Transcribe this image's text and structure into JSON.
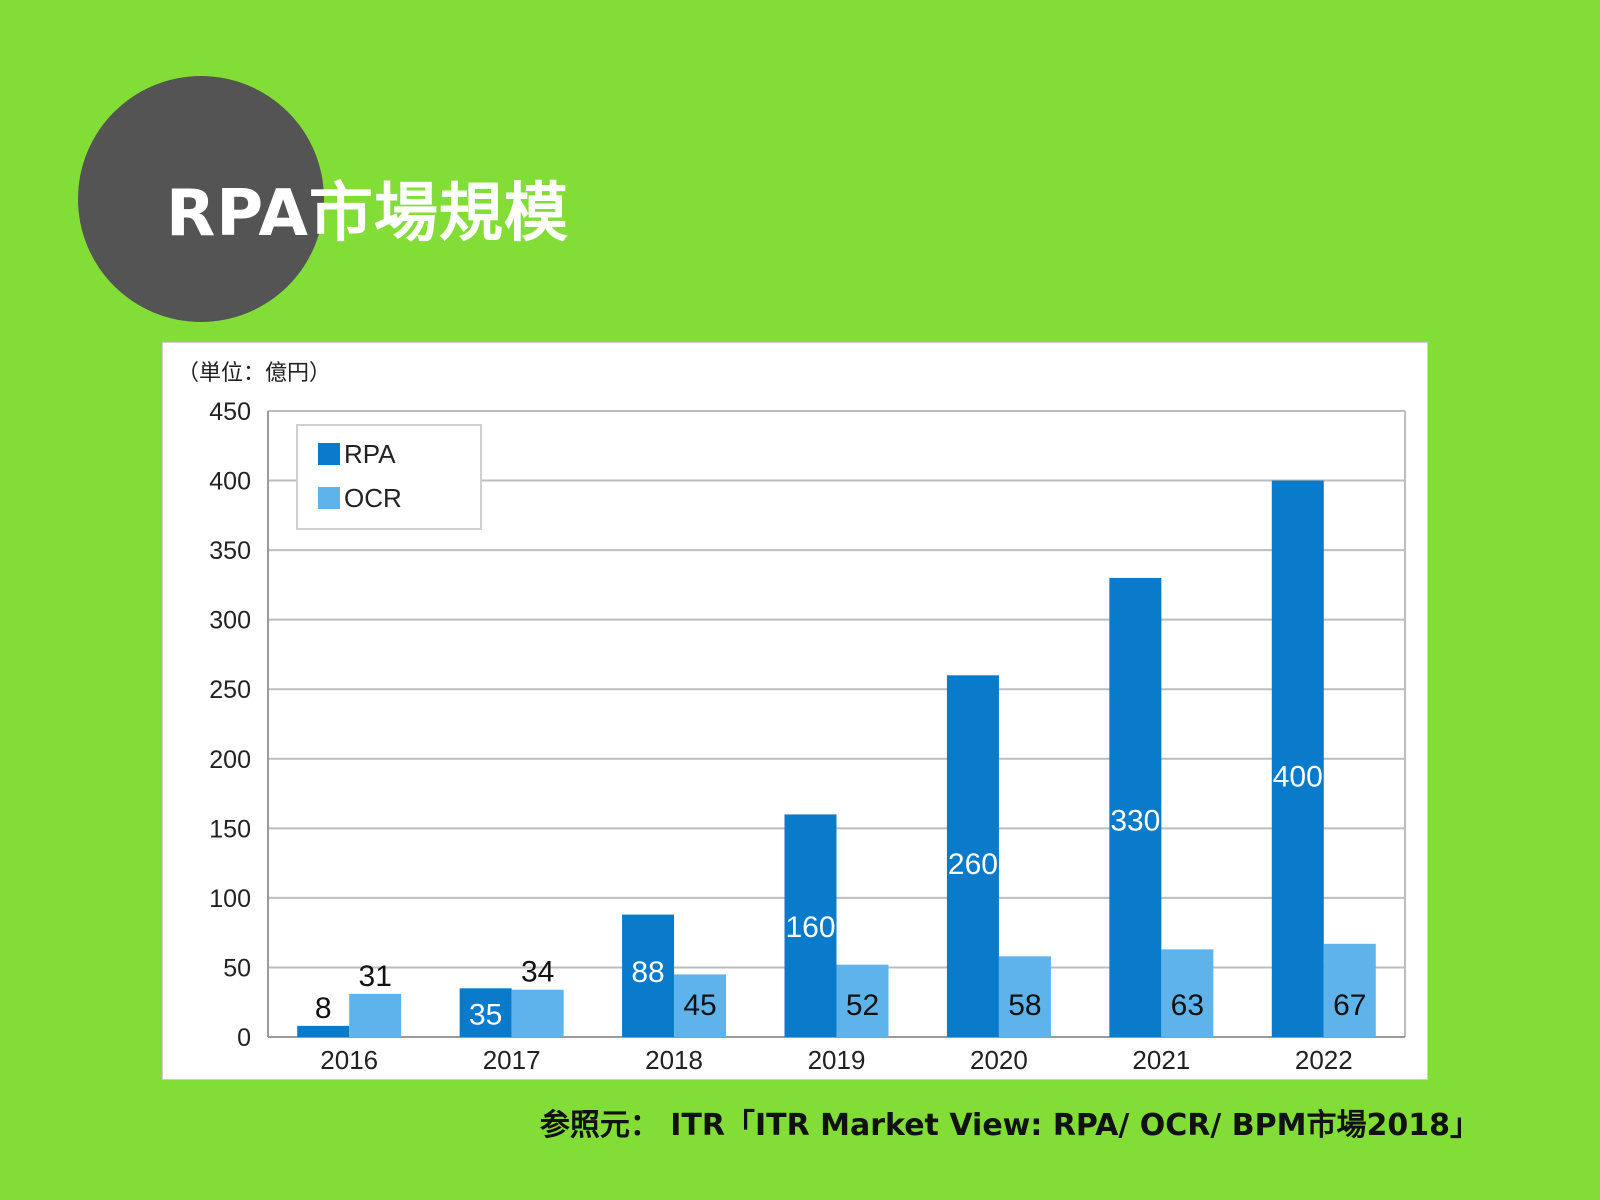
{
  "header": {
    "title": "RPA市場規模"
  },
  "source_note": "参照元： ITR「ITR Market View: RPA/ OCR/ BPM市場2018」",
  "colors": {
    "background": "#83DD37",
    "circle": "#545454",
    "rpa": "#0A7ACB",
    "ocr": "#5EB4EA"
  },
  "chart_data": {
    "type": "bar",
    "unit_label": "（単位：億円）",
    "categories": [
      "2016",
      "2017",
      "2018",
      "2019",
      "2020",
      "2021",
      "2022"
    ],
    "series": [
      {
        "name": "RPA",
        "values": [
          8,
          35,
          88,
          160,
          260,
          330,
          400
        ]
      },
      {
        "name": "OCR",
        "values": [
          31,
          34,
          45,
          52,
          58,
          63,
          67
        ]
      }
    ],
    "ylim": [
      0,
      450
    ],
    "yticks": [
      0,
      50,
      100,
      150,
      200,
      250,
      300,
      350,
      400,
      450
    ],
    "grid": true,
    "legend_position": "top-left",
    "data_labels": {
      "RPA": [
        "8",
        "35",
        "88",
        "160",
        "260",
        "330",
        "400"
      ],
      "OCR": [
        "31",
        "34",
        "45",
        "52",
        "58",
        "63",
        "67"
      ]
    }
  }
}
